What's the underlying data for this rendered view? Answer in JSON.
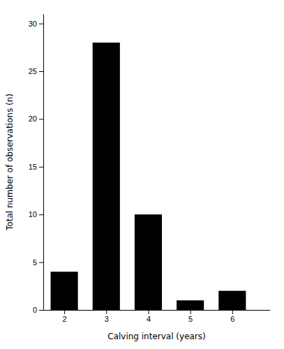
{
  "chart_data": {
    "type": "bar",
    "x": [
      2,
      3,
      4,
      5,
      6
    ],
    "values": [
      4,
      28,
      10,
      1,
      2
    ],
    "color": "#000000",
    "xlim": [
      1.5,
      6.9
    ],
    "xticks": [
      2,
      3,
      4,
      5,
      6
    ],
    "ylim": [
      0,
      31
    ],
    "yticks": [
      0,
      5,
      10,
      15,
      20,
      25,
      30
    ],
    "x_label": "Calving interval (years)",
    "y_label": "Total number of observations (n)",
    "grid": false
  }
}
